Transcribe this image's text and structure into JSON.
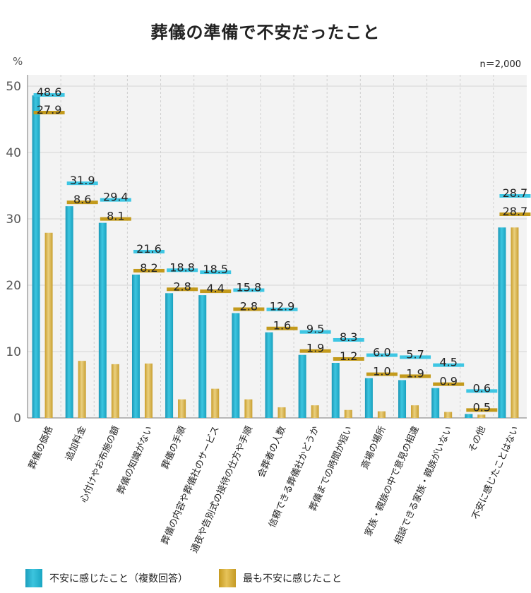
{
  "title": "葬儀の準備で不安だったこと",
  "unit_label": "%",
  "sample_size": "n＝2,000",
  "legend": {
    "series1": "不安に感じたこと（複数回答）",
    "series2": "最も不安に感じたこと"
  },
  "colors": {
    "series1": "#25b3d1",
    "series2": "#d4b043",
    "series1_label_bar": "#3ec6e3",
    "series2_label_bar": "#c39a1c"
  },
  "chart_data": {
    "type": "bar",
    "title": "葬儀の準備で不安だったこと",
    "ylabel": "%",
    "ylim": [
      0,
      50
    ],
    "yticks": [
      0,
      10,
      20,
      30,
      40,
      50
    ],
    "grid": true,
    "legend_position": "bottom",
    "categories": [
      "葬儀の価格",
      "追加料金",
      "心付けやお布施の額",
      "葬儀の知識がない",
      "葬儀の手順",
      "葬儀の内容や葬儀社のサービス",
      "通夜や告別式の接待の仕方や手順",
      "会葬者の人数",
      "信頼できる葬儀社かどうか",
      "葬儀までの時間が短い",
      "斎場の場所",
      "家族・親族の中で意見の相違",
      "相談できる家族・親族がいない",
      "その他",
      "不安に感じたことはない"
    ],
    "series": [
      {
        "name": "不安に感じたこと（複数回答）",
        "values": [
          48.6,
          31.9,
          29.4,
          21.6,
          18.8,
          18.5,
          15.8,
          12.9,
          9.5,
          8.3,
          6.0,
          5.7,
          4.5,
          0.6,
          28.7
        ],
        "labels": [
          "48.6",
          "31.9",
          "29.4",
          "21.6",
          "18.8",
          "18.5",
          "15.8",
          "12.9",
          "9.5",
          "8.3",
          "6.0",
          "5.7",
          "4.5",
          "0.6",
          "28.7"
        ]
      },
      {
        "name": "最も不安に感じたこと",
        "values": [
          27.9,
          8.6,
          8.1,
          8.2,
          2.8,
          4.4,
          2.8,
          1.6,
          1.9,
          1.2,
          1.0,
          1.9,
          0.9,
          0.5,
          28.7
        ],
        "labels": [
          "27.9",
          "8.6",
          "8.1",
          "8.2",
          "2.8",
          "4.4",
          "2.8",
          "1.6",
          "1.9",
          "1.2",
          "1.0",
          "1.9",
          "0.9",
          "0.5",
          "28.7"
        ]
      }
    ]
  }
}
